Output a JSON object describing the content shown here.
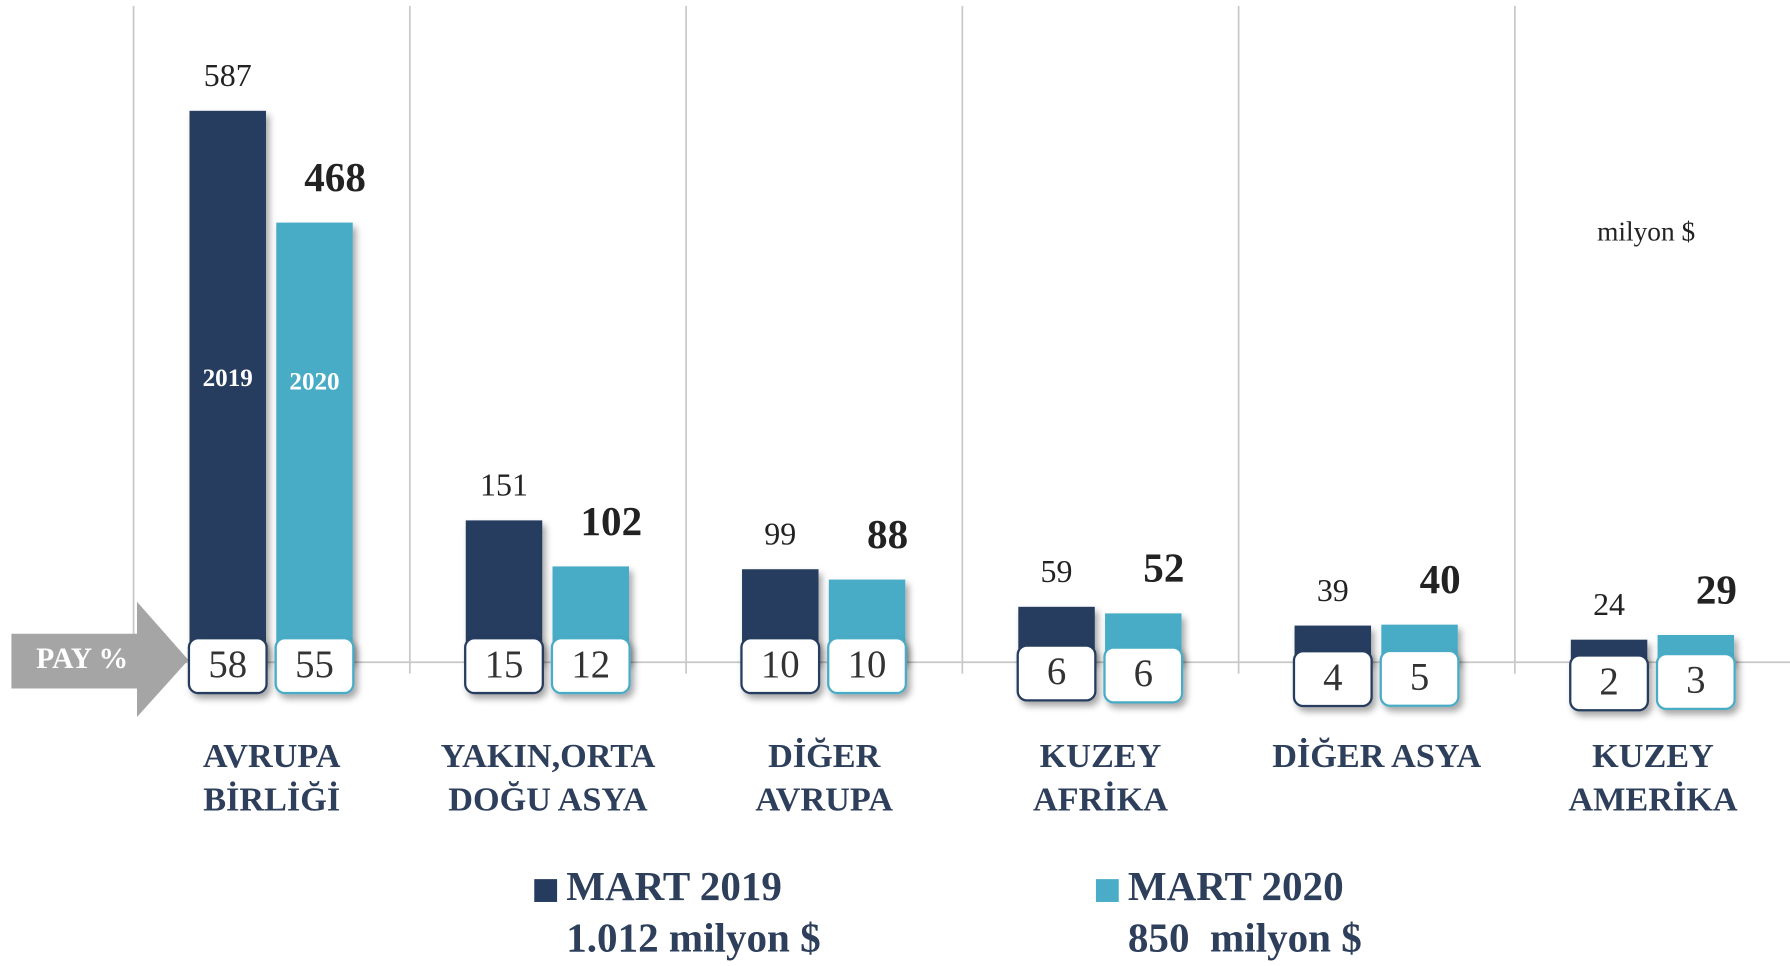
{
  "chart_data": {
    "type": "bar",
    "unit": "milyon $",
    "share_label": "PAY %",
    "categories": [
      [
        "AVRUPA",
        "BİRLİĞİ"
      ],
      [
        "YAKIN,ORTA",
        "DOĞU ASYA"
      ],
      [
        "DİĞER",
        "AVRUPA"
      ],
      [
        "KUZEY",
        "AFRİKA"
      ],
      [
        "DİĞER ASYA"
      ],
      [
        "KUZEY",
        "AMERİKA"
      ]
    ],
    "ylim": [
      0,
      700
    ],
    "series": [
      {
        "name": "MART 2019",
        "total": "1.012 milyon $",
        "bar_label": "2019",
        "color": "#253c5e",
        "values": [
          587,
          151,
          99,
          59,
          39,
          24
        ],
        "shares": [
          58,
          15,
          10,
          6,
          4,
          2
        ]
      },
      {
        "name": "MART 2020",
        "total": "850  milyon $",
        "bar_label": "2020",
        "color": "#4aacc6",
        "values": [
          468,
          102,
          88,
          52,
          40,
          29
        ],
        "shares": [
          55,
          12,
          10,
          6,
          5,
          3
        ]
      }
    ]
  }
}
